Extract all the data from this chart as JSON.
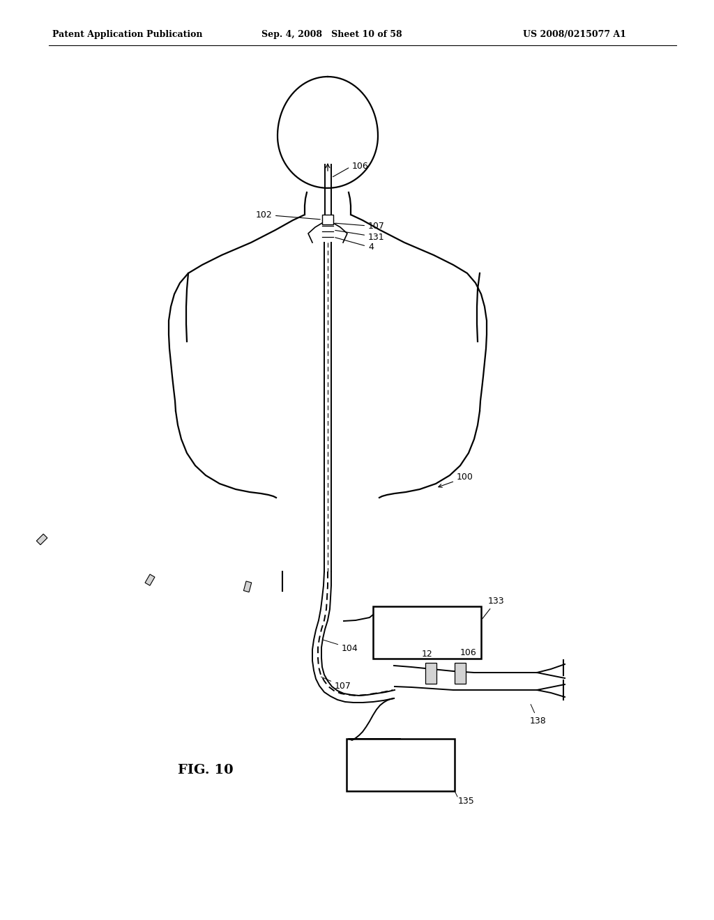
{
  "bg_color": "#ffffff",
  "lc": "#000000",
  "header_left": "Patent Application Publication",
  "header_mid": "Sep. 4, 2008   Sheet 10 of 58",
  "header_right": "US 2008/0215077 A1",
  "fig_label": "FIG. 10",
  "body_lw": 1.6,
  "tube_lw": 1.4,
  "label_fs": 9,
  "header_fs": 9
}
